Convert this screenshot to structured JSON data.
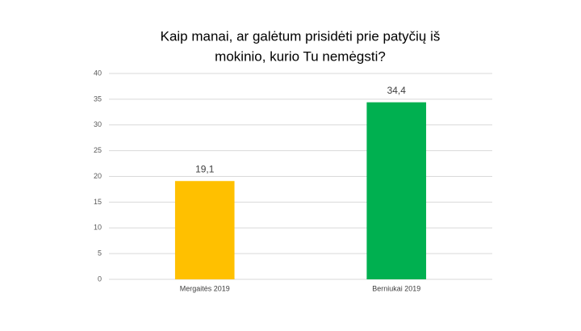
{
  "chart_data": {
    "type": "bar",
    "title": [
      "Kaip manai, ar galėtum prisidėti prie patyčių iš",
      "mokinio, kurio Tu nemėgsti?"
    ],
    "categories": [
      "Mergaitės 2019",
      "Berniukai 2019"
    ],
    "values": [
      19.1,
      34.4
    ],
    "value_labels": [
      "19,1",
      "34,4"
    ],
    "colors": [
      "#ffc000",
      "#00b050"
    ],
    "ylim": [
      0,
      40
    ],
    "yticks": [
      0,
      5,
      10,
      15,
      20,
      25,
      30,
      35,
      40
    ],
    "grid": true
  }
}
